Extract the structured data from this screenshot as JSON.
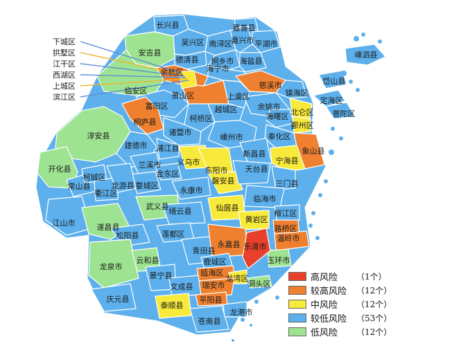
{
  "colors": {
    "high": "#e8402a",
    "mid_high": "#ee8030",
    "mid": "#f8ea3a",
    "mid_low": "#5db0ec",
    "low": "#9ee391",
    "border": "#ffffff"
  },
  "callouts": [
    "下城区",
    "拱墅区",
    "江干区",
    "西湖区",
    "上城区",
    "滨江区"
  ],
  "regions": [
    {
      "key": "changxing",
      "name": "长兴县",
      "level": "mid_low"
    },
    {
      "key": "anji",
      "name": "安吉县",
      "level": "low"
    },
    {
      "key": "wuxing",
      "name": "吴兴区",
      "level": "mid_low"
    },
    {
      "key": "nanxun",
      "name": "南浔区",
      "level": "mid_low"
    },
    {
      "key": "deqing",
      "name": "德清县",
      "level": "mid_low"
    },
    {
      "key": "tongxiang",
      "name": "桐乡市",
      "level": "mid_low"
    },
    {
      "key": "jiaxing",
      "name": "嘉兴市",
      "level": "mid_low"
    },
    {
      "key": "jiashan",
      "name": "嘉善县",
      "level": "mid_low"
    },
    {
      "key": "pinghu",
      "name": "平湖市",
      "level": "mid_low"
    },
    {
      "key": "haiyan",
      "name": "海盐县",
      "level": "mid_low"
    },
    {
      "key": "haining",
      "name": "海宁市",
      "level": "mid_low"
    },
    {
      "key": "yuhang",
      "name": "余杭区",
      "level": "mid_high"
    },
    {
      "key": "linan",
      "name": "临安区",
      "level": "low"
    },
    {
      "key": "xiaoshan",
      "name": "萧山区",
      "level": "mid_high"
    },
    {
      "key": "fuyang",
      "name": "富阳区",
      "level": "mid_low"
    },
    {
      "key": "tonglu",
      "name": "桐庐县",
      "level": "mid_high"
    },
    {
      "key": "chunan",
      "name": "淳安县",
      "level": "low"
    },
    {
      "key": "jiande",
      "name": "建德市",
      "level": "mid_low"
    },
    {
      "key": "shengsi",
      "name": "嵊泗县",
      "level": "mid_low"
    },
    {
      "key": "daishan",
      "name": "岱山县",
      "level": "mid_low"
    },
    {
      "key": "dinghai",
      "name": "定海区",
      "level": "mid_low"
    },
    {
      "key": "putuo",
      "name": "普陀区",
      "level": "mid_low"
    },
    {
      "key": "cixi",
      "name": "慈溪市",
      "level": "mid_high"
    },
    {
      "key": "shangyu",
      "name": "上虞区",
      "level": "mid_low"
    },
    {
      "key": "yuyao",
      "name": "余姚市",
      "level": "mid_low"
    },
    {
      "key": "zhenhai",
      "name": "镇海区",
      "level": "mid_low"
    },
    {
      "key": "beilun",
      "name": "北仑区",
      "level": "mid"
    },
    {
      "key": "haishu",
      "name": "海曙区",
      "level": "mid_low"
    },
    {
      "key": "yinzhou",
      "name": "鄞州区",
      "level": "mid"
    },
    {
      "key": "fenghua",
      "name": "奉化区",
      "level": "mid_low"
    },
    {
      "key": "xiangshan",
      "name": "象山县",
      "level": "mid_high"
    },
    {
      "key": "ninghai",
      "name": "宁海县",
      "level": "mid"
    },
    {
      "key": "yuecheng",
      "name": "越城区",
      "level": "mid_low"
    },
    {
      "key": "keqiao",
      "name": "柯桥区",
      "level": "mid_low"
    },
    {
      "key": "zhuji",
      "name": "诸暨市",
      "level": "mid_low"
    },
    {
      "key": "shengzhou",
      "name": "嵊州市",
      "level": "mid_low"
    },
    {
      "key": "xinchang",
      "name": "新昌县",
      "level": "mid_low"
    },
    {
      "key": "pujiang",
      "name": "浦江县",
      "level": "mid_low"
    },
    {
      "key": "lanxi",
      "name": "兰溪市",
      "level": "mid_low"
    },
    {
      "key": "jindong",
      "name": "金东区",
      "level": "mid_low"
    },
    {
      "key": "wucheng",
      "name": "婺城区",
      "level": "mid_low"
    },
    {
      "key": "yiwu",
      "name": "义乌市",
      "level": "mid"
    },
    {
      "key": "dongyang",
      "name": "东阳市",
      "level": "mid"
    },
    {
      "key": "panan",
      "name": "磐安县",
      "level": "mid"
    },
    {
      "key": "yongkang",
      "name": "永康市",
      "level": "mid_low"
    },
    {
      "key": "wuyi",
      "name": "武义县",
      "level": "low"
    },
    {
      "key": "kaihua",
      "name": "开化县",
      "level": "low"
    },
    {
      "key": "changshan",
      "name": "常山县",
      "level": "mid_low"
    },
    {
      "key": "kecheng",
      "name": "柯城区",
      "level": "mid_low"
    },
    {
      "key": "qujiang",
      "name": "衢江区",
      "level": "mid_low"
    },
    {
      "key": "longyou",
      "name": "龙游县",
      "level": "mid_low"
    },
    {
      "key": "jiangshan",
      "name": "江山市",
      "level": "mid_low"
    },
    {
      "key": "suichang",
      "name": "遂昌县",
      "level": "low"
    },
    {
      "key": "songyang",
      "name": "松阳县",
      "level": "mid_low"
    },
    {
      "key": "jinyun",
      "name": "缙云县",
      "level": "mid_low"
    },
    {
      "key": "liandu",
      "name": "莲都区",
      "level": "mid_low"
    },
    {
      "key": "longquan",
      "name": "龙泉市",
      "level": "low"
    },
    {
      "key": "yunhe",
      "name": "云和县",
      "level": "low"
    },
    {
      "key": "jingning",
      "name": "景宁县",
      "level": "mid_low"
    },
    {
      "key": "qingyuan",
      "name": "庆元县",
      "level": "mid_low"
    },
    {
      "key": "qingtian",
      "name": "青田县",
      "level": "mid_low"
    },
    {
      "key": "tiantai",
      "name": "天台县",
      "level": "mid_low"
    },
    {
      "key": "sanmen",
      "name": "三门县",
      "level": "mid_low"
    },
    {
      "key": "linhai",
      "name": "临海市",
      "level": "mid_low"
    },
    {
      "key": "xianju",
      "name": "仙居县",
      "level": "mid"
    },
    {
      "key": "huangyan",
      "name": "黄岩区",
      "level": "mid"
    },
    {
      "key": "jiaojiang",
      "name": "椒江区",
      "level": "mid_low"
    },
    {
      "key": "luqiao",
      "name": "路桥区",
      "level": "mid_high"
    },
    {
      "key": "wenling",
      "name": "温岭市",
      "level": "mid_high"
    },
    {
      "key": "yuhuan",
      "name": "玉环市",
      "level": "low"
    },
    {
      "key": "yongjia",
      "name": "永嘉县",
      "level": "mid_high"
    },
    {
      "key": "yueqing",
      "name": "乐清市",
      "level": "high"
    },
    {
      "key": "lucheng",
      "name": "鹿城区",
      "level": "mid_low"
    },
    {
      "key": "ouhai",
      "name": "瓯海区",
      "level": "mid_high"
    },
    {
      "key": "longwan",
      "name": "龙湾区",
      "level": "mid"
    },
    {
      "key": "dongtou",
      "name": "洞头区",
      "level": "low"
    },
    {
      "key": "ruian",
      "name": "瑞安市",
      "level": "mid_high"
    },
    {
      "key": "wencheng",
      "name": "文成县",
      "level": "mid_low"
    },
    {
      "key": "pingyang",
      "name": "平阳县",
      "level": "mid_high"
    },
    {
      "key": "taishun",
      "name": "泰顺县",
      "level": "mid"
    },
    {
      "key": "cangnan",
      "name": "苍南县",
      "level": "mid_low"
    },
    {
      "key": "longgang",
      "name": "龙港市",
      "level": "mid_low"
    }
  ],
  "legend": [
    {
      "level": "high",
      "name": "高风险",
      "count": "（1个）"
    },
    {
      "level": "mid_high",
      "name": "较高风险",
      "count": "（12个）"
    },
    {
      "level": "mid",
      "name": "中风险",
      "count": "（12个）"
    },
    {
      "level": "mid_low",
      "name": "较低风险",
      "count": "（53个）"
    },
    {
      "level": "low",
      "name": "低风险",
      "count": "（12个）"
    }
  ]
}
